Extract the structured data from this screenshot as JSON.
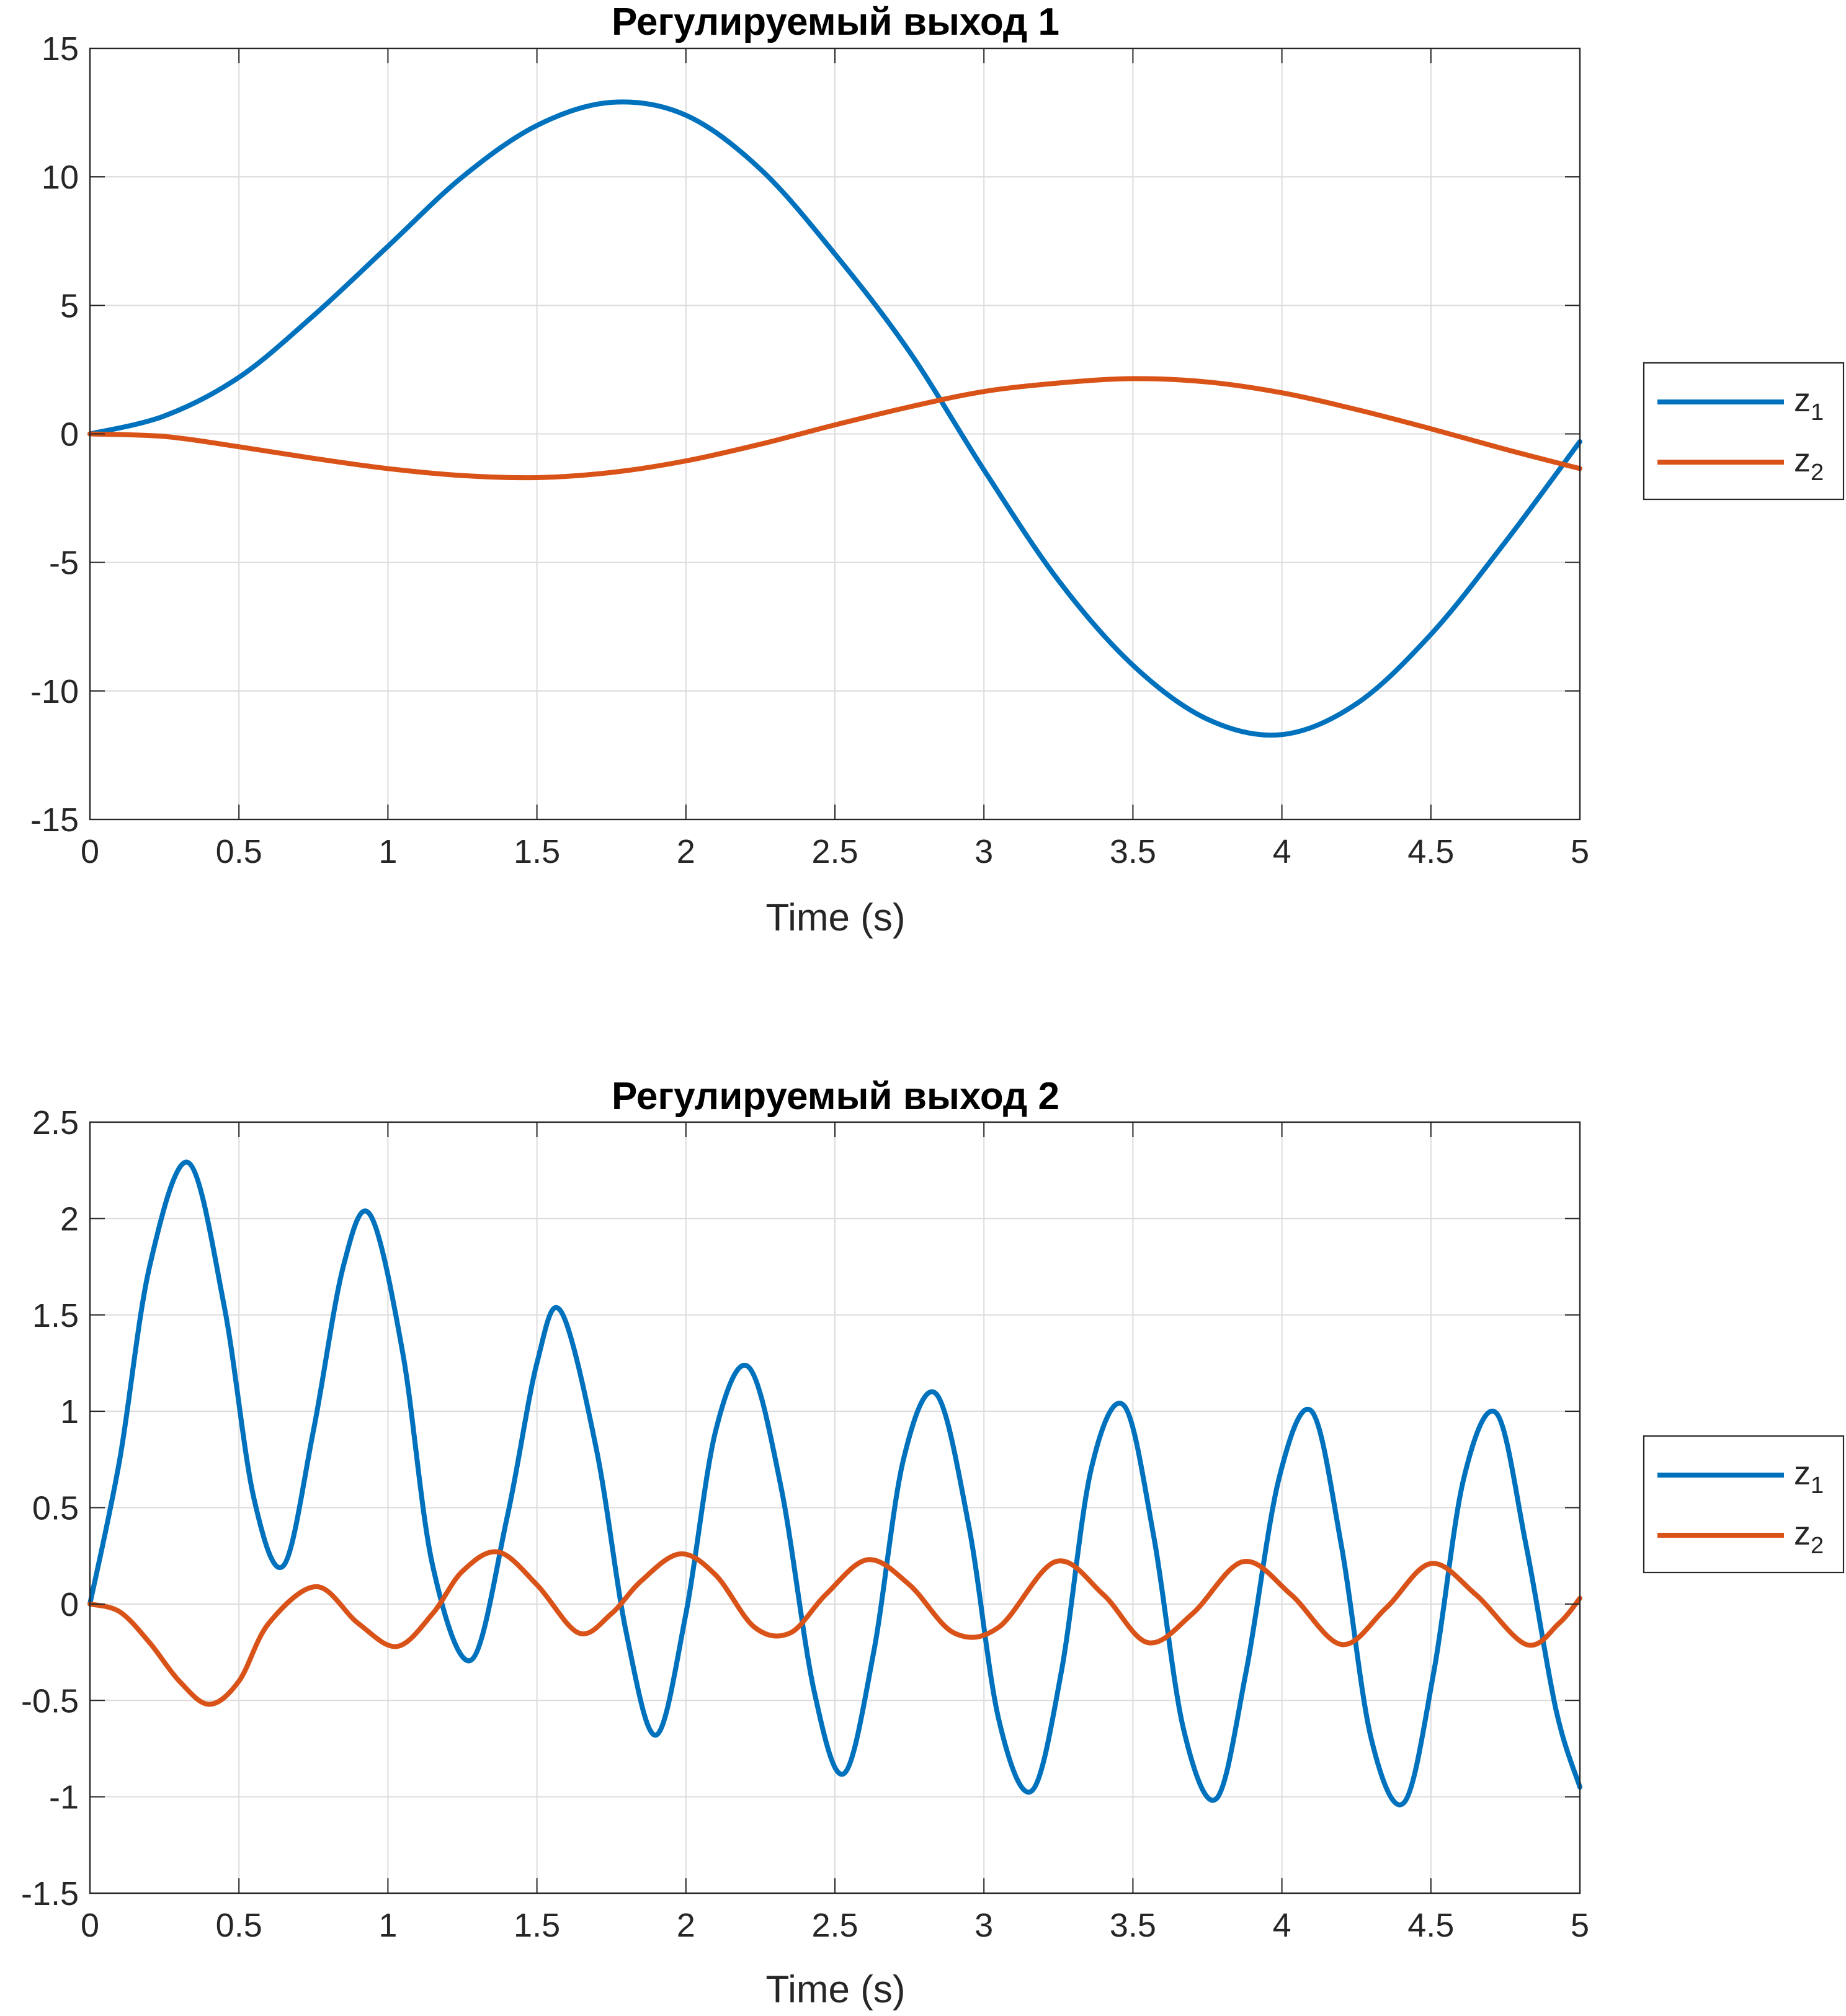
{
  "chart_data": [
    {
      "type": "line",
      "title": "Регулируемый выход 1",
      "xlabel": "Time (s)",
      "ylabel": "",
      "xlim": [
        0,
        5
      ],
      "ylim": [
        -15,
        15
      ],
      "grid": true,
      "legend_position": "outside-right",
      "x_ticks": [
        "0",
        "0.5",
        "1",
        "1.5",
        "2",
        "2.5",
        "3",
        "3.5",
        "4",
        "4.5",
        "5"
      ],
      "y_ticks": [
        "-15",
        "-10",
        "-5",
        "0",
        "5",
        "10",
        "15"
      ],
      "x": [
        0,
        0.25,
        0.5,
        0.75,
        1.0,
        1.25,
        1.5,
        1.75,
        2.0,
        2.25,
        2.5,
        2.75,
        3.0,
        3.25,
        3.5,
        3.75,
        4.0,
        4.25,
        4.5,
        4.75,
        5.0
      ],
      "series": [
        {
          "name": "z",
          "subscript": "1",
          "color": "#0072BD",
          "values": [
            0,
            0.7,
            2.2,
            4.6,
            7.3,
            10.0,
            12.0,
            12.9,
            12.4,
            10.3,
            7.0,
            3.2,
            -1.4,
            -5.7,
            -9.0,
            -11.1,
            -11.7,
            -10.5,
            -7.8,
            -4.2,
            -0.3
          ]
        },
        {
          "name": "z",
          "subscript": "2",
          "color": "#D95319",
          "values": [
            0,
            -0.1,
            -0.5,
            -0.95,
            -1.35,
            -1.62,
            -1.7,
            -1.5,
            -1.05,
            -0.4,
            0.35,
            1.05,
            1.65,
            1.98,
            2.15,
            2.02,
            1.6,
            0.95,
            0.2,
            -0.6,
            -1.35
          ]
        }
      ]
    },
    {
      "type": "line",
      "title": "Регулируемый выход 2",
      "xlabel": "Time (s)",
      "ylabel": "",
      "xlim": [
        0,
        5
      ],
      "ylim": [
        -1.5,
        2.5
      ],
      "grid": true,
      "legend_position": "outside-right",
      "x_ticks": [
        "0",
        "0.5",
        "1",
        "1.5",
        "2",
        "2.5",
        "3",
        "3.5",
        "4",
        "4.5",
        "5"
      ],
      "y_ticks": [
        "-1.5",
        "-1",
        "-0.5",
        "0",
        "0.5",
        "1",
        "1.5",
        "2",
        "2.5"
      ],
      "series": [
        {
          "name": "z",
          "subscript": "1",
          "color": "#0072BD",
          "x": [
            0,
            0.1,
            0.2,
            0.33,
            0.45,
            0.55,
            0.65,
            0.75,
            0.85,
            0.94,
            1.05,
            1.15,
            1.28,
            1.4,
            1.5,
            1.58,
            1.7,
            1.8,
            1.9,
            2.0,
            2.1,
            2.21,
            2.32,
            2.43,
            2.53,
            2.63,
            2.73,
            2.84,
            2.95,
            3.05,
            3.16,
            3.26,
            3.36,
            3.47,
            3.57,
            3.67,
            3.78,
            3.88,
            3.99,
            4.1,
            4.2,
            4.3,
            4.41,
            4.51,
            4.61,
            4.72,
            4.82,
            4.92,
            5.0
          ],
          "values": [
            0,
            0.75,
            1.75,
            2.29,
            1.55,
            0.55,
            0.2,
            0.9,
            1.75,
            2.02,
            1.3,
            0.2,
            -0.29,
            0.45,
            1.25,
            1.52,
            0.8,
            -0.15,
            -0.68,
            -0.05,
            0.9,
            1.23,
            0.6,
            -0.45,
            -0.88,
            -0.25,
            0.75,
            1.09,
            0.4,
            -0.6,
            -0.97,
            -0.35,
            0.7,
            1.03,
            0.35,
            -0.65,
            -1.01,
            -0.35,
            0.65,
            1.0,
            0.3,
            -0.7,
            -1.03,
            -0.35,
            0.65,
            0.99,
            0.3,
            -0.55,
            -0.95
          ]
        },
        {
          "name": "z",
          "subscript": "2",
          "color": "#D95319",
          "x": [
            0,
            0.1,
            0.2,
            0.3,
            0.4,
            0.5,
            0.6,
            0.76,
            0.9,
            1.03,
            1.15,
            1.25,
            1.37,
            1.5,
            1.64,
            1.75,
            1.85,
            1.98,
            2.1,
            2.23,
            2.35,
            2.47,
            2.61,
            2.75,
            2.9,
            3.05,
            3.24,
            3.4,
            3.55,
            3.7,
            3.87,
            4.03,
            4.2,
            4.35,
            4.5,
            4.65,
            4.82,
            4.93,
            5.0
          ],
          "values": [
            0,
            -0.04,
            -0.2,
            -0.4,
            -0.52,
            -0.4,
            -0.1,
            0.09,
            -0.1,
            -0.22,
            -0.05,
            0.17,
            0.27,
            0.1,
            -0.15,
            -0.05,
            0.12,
            0.26,
            0.15,
            -0.12,
            -0.15,
            0.05,
            0.23,
            0.1,
            -0.15,
            -0.12,
            0.22,
            0.05,
            -0.2,
            -0.05,
            0.22,
            0.05,
            -0.21,
            -0.02,
            0.21,
            0.05,
            -0.21,
            -0.1,
            0.03
          ]
        }
      ]
    }
  ]
}
